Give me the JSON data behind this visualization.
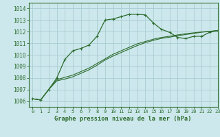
{
  "title": "Graphe pression niveau de la mer (hPa)",
  "bg_color": "#cce8ec",
  "grid_color": "#aaccd4",
  "line_color": "#2d6b2d",
  "xlim": [
    -0.5,
    23
  ],
  "ylim": [
    1005.5,
    1014.5
  ],
  "xticks": [
    0,
    1,
    2,
    3,
    4,
    5,
    6,
    7,
    8,
    9,
    10,
    11,
    12,
    13,
    14,
    15,
    16,
    17,
    18,
    19,
    20,
    21,
    22,
    23
  ],
  "yticks": [
    1006,
    1007,
    1008,
    1009,
    1010,
    1011,
    1012,
    1013,
    1014
  ],
  "series1_x": [
    0,
    1,
    2,
    3,
    4,
    5,
    6,
    7,
    8,
    9,
    10,
    11,
    12,
    13,
    14,
    15,
    16,
    17,
    18,
    19,
    20,
    21,
    22,
    23
  ],
  "series1_y": [
    1006.2,
    1006.1,
    1007.0,
    1008.0,
    1009.6,
    1010.35,
    1010.55,
    1010.85,
    1011.6,
    1013.0,
    1013.1,
    1013.3,
    1013.5,
    1013.5,
    1013.45,
    1012.75,
    1012.2,
    1011.95,
    1011.5,
    1011.4,
    1011.6,
    1011.6,
    1011.95,
    1012.1
  ],
  "series2_x": [
    0,
    1,
    2,
    3,
    4,
    5,
    6,
    7,
    8,
    9,
    10,
    11,
    12,
    13,
    14,
    15,
    16,
    17,
    18,
    19,
    20,
    21,
    22,
    23
  ],
  "series2_y": [
    1006.2,
    1006.1,
    1007.0,
    1007.85,
    1008.05,
    1008.25,
    1008.55,
    1008.85,
    1009.25,
    1009.65,
    1010.05,
    1010.35,
    1010.65,
    1010.95,
    1011.15,
    1011.35,
    1011.5,
    1011.6,
    1011.72,
    1011.82,
    1011.9,
    1011.98,
    1012.03,
    1012.1
  ],
  "series3_x": [
    0,
    1,
    2,
    3,
    4,
    5,
    6,
    7,
    8,
    9,
    10,
    11,
    12,
    13,
    14,
    15,
    16,
    17,
    18,
    19,
    20,
    21,
    22,
    23
  ],
  "series3_y": [
    1006.2,
    1006.1,
    1007.0,
    1007.75,
    1007.9,
    1008.1,
    1008.4,
    1008.7,
    1009.1,
    1009.55,
    1009.9,
    1010.2,
    1010.5,
    1010.8,
    1011.05,
    1011.25,
    1011.42,
    1011.52,
    1011.65,
    1011.75,
    1011.85,
    1011.95,
    1012.02,
    1012.1
  ]
}
